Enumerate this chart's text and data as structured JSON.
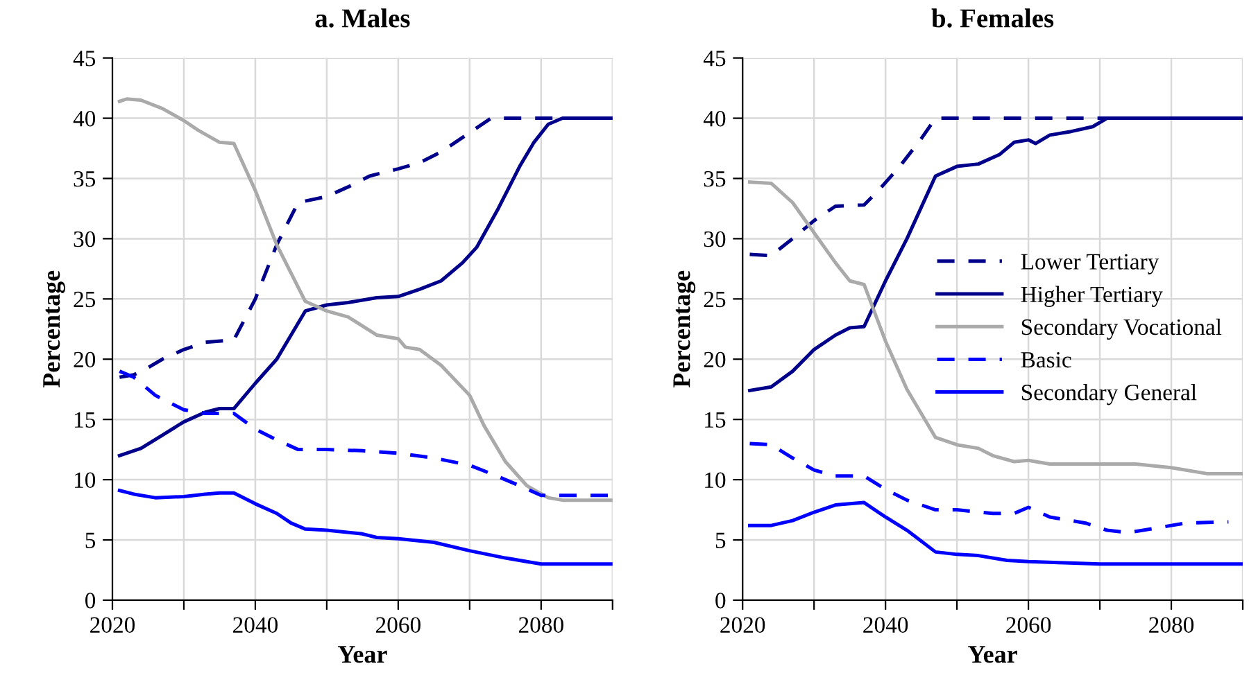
{
  "chart_data": [
    {
      "type": "line",
      "title": "a. Males",
      "xlabel": "Year",
      "ylabel": "Percentage",
      "xlim": [
        2020,
        2090
      ],
      "ylim": [
        0,
        45
      ],
      "xticks": [
        2020,
        {
          "value": 2030,
          "label": null
        },
        2040,
        {
          "value": 2050,
          "label": null
        },
        2060,
        {
          "value": 2070,
          "label": null
        },
        2080,
        {
          "value": 2090,
          "label": null
        }
      ],
      "yticks": [
        0,
        5,
        10,
        15,
        20,
        25,
        30,
        35,
        40,
        45
      ],
      "grid": true,
      "series": [
        {
          "color": "#00008b",
          "line_style": "dashed",
          "x": [
            2021,
            2023,
            2025,
            2027,
            2030,
            2033,
            2037,
            2040,
            2043,
            2046,
            2050,
            2053,
            2056,
            2060,
            2063,
            2066,
            2070,
            2073,
            2080,
            2090
          ],
          "values": [
            18.5,
            18.7,
            19.3,
            20,
            20.8,
            21.4,
            21.6,
            25,
            29.5,
            33,
            33.5,
            34.3,
            35.2,
            35.8,
            36.3,
            37.2,
            38.8,
            40,
            40,
            40
          ]
        },
        {
          "color": "#00008b",
          "line_style": "solid",
          "x": [
            2021,
            2024,
            2027,
            2030,
            2033,
            2035,
            2037,
            2040,
            2043,
            2047,
            2050,
            2053,
            2057,
            2060,
            2063,
            2066,
            2069,
            2071,
            2074,
            2077,
            2079,
            2081,
            2083,
            2090
          ],
          "values": [
            12,
            12.6,
            13.7,
            14.8,
            15.6,
            15.9,
            15.9,
            18,
            20,
            24,
            24.5,
            24.7,
            25.1,
            25.2,
            25.8,
            26.5,
            28,
            29.3,
            32.5,
            36,
            38,
            39.5,
            40,
            40
          ]
        },
        {
          "color": "#aaaaaa",
          "line_style": "solid",
          "x": [
            2021,
            2022,
            2024,
            2027,
            2030,
            2032,
            2035,
            2037,
            2040,
            2043,
            2047,
            2050,
            2053,
            2057,
            2060,
            2061,
            2063,
            2066,
            2070,
            2072,
            2075,
            2078,
            2081,
            2083,
            2090
          ],
          "values": [
            41.4,
            41.6,
            41.5,
            40.8,
            39.8,
            39,
            38,
            37.9,
            34,
            29.5,
            24.8,
            24,
            23.5,
            22,
            21.7,
            21,
            20.8,
            19.5,
            17,
            14.5,
            11.5,
            9.5,
            8.5,
            8.3,
            8.3
          ]
        },
        {
          "color": "#0000ff",
          "line_style": "dashed",
          "x": [
            2021,
            2023,
            2026,
            2030,
            2033,
            2037,
            2040,
            2043,
            2046,
            2050,
            2055,
            2060,
            2065,
            2070,
            2073,
            2077,
            2080,
            2090
          ],
          "values": [
            19,
            18.5,
            17,
            15.8,
            15.5,
            15.5,
            14.2,
            13.3,
            12.5,
            12.5,
            12.4,
            12.2,
            11.8,
            11.2,
            10.5,
            9.5,
            8.7,
            8.7
          ]
        },
        {
          "color": "#0000ff",
          "line_style": "solid",
          "x": [
            2021,
            2023,
            2026,
            2030,
            2033,
            2035,
            2037,
            2040,
            2043,
            2045,
            2047,
            2050,
            2055,
            2057,
            2060,
            2065,
            2070,
            2075,
            2080,
            2090
          ],
          "values": [
            9.1,
            8.8,
            8.5,
            8.6,
            8.8,
            8.9,
            8.9,
            8,
            7.2,
            6.4,
            5.9,
            5.8,
            5.5,
            5.2,
            5.1,
            4.8,
            4.1,
            3.5,
            3,
            3
          ]
        }
      ]
    },
    {
      "type": "line",
      "title": "b. Females",
      "xlabel": "Year",
      "ylabel": "Percentage",
      "xlim": [
        2020,
        2090
      ],
      "ylim": [
        0,
        45
      ],
      "xticks": [
        2020,
        {
          "value": 2030,
          "label": null
        },
        2040,
        {
          "value": 2050,
          "label": null
        },
        2060,
        {
          "value": 2070,
          "label": null
        },
        2080,
        {
          "value": 2090,
          "label": null
        }
      ],
      "yticks": [
        0,
        5,
        10,
        15,
        20,
        25,
        30,
        35,
        40,
        45
      ],
      "grid": true,
      "legend": "right",
      "series": [
        {
          "name": "Lower Tertiary",
          "color": "#00008b",
          "line_style": "dashed",
          "x": [
            2021,
            2024,
            2027,
            2030,
            2033,
            2037,
            2039,
            2042,
            2045,
            2047,
            2090
          ],
          "values": [
            28.7,
            28.6,
            30,
            31.5,
            32.7,
            32.8,
            34,
            36,
            38.3,
            40,
            40
          ]
        },
        {
          "name": "Higher Tertiary",
          "color": "#00008b",
          "line_style": "solid",
          "x": [
            2021,
            2024,
            2027,
            2030,
            2033,
            2035,
            2037,
            2040,
            2043,
            2047,
            2050,
            2053,
            2056,
            2058,
            2060,
            2061,
            2063,
            2066,
            2069,
            2071,
            2090
          ],
          "values": [
            17.4,
            17.7,
            19,
            20.8,
            22,
            22.6,
            22.7,
            26.5,
            30,
            35.2,
            36,
            36.2,
            37,
            38,
            38.2,
            37.9,
            38.6,
            38.9,
            39.3,
            40,
            40
          ]
        },
        {
          "name": "Secondary Vocational",
          "color": "#aaaaaa",
          "line_style": "solid",
          "x": [
            2021,
            2024,
            2027,
            2030,
            2033,
            2035,
            2037,
            2040,
            2043,
            2047,
            2050,
            2053,
            2055,
            2058,
            2060,
            2063,
            2070,
            2075,
            2080,
            2085,
            2090
          ],
          "values": [
            34.7,
            34.6,
            33,
            30.5,
            28,
            26.5,
            26.2,
            21.5,
            17.5,
            13.5,
            12.9,
            12.6,
            12,
            11.5,
            11.6,
            11.3,
            11.3,
            11.3,
            11,
            10.5,
            10.5
          ]
        },
        {
          "name": "Basic",
          "color": "#0000ff",
          "line_style": "dashed",
          "x": [
            2021,
            2024,
            2027,
            2030,
            2033,
            2037,
            2040,
            2043,
            2047,
            2050,
            2055,
            2058,
            2060,
            2063,
            2068,
            2071,
            2074,
            2078,
            2082,
            2088
          ],
          "values": [
            13,
            12.9,
            11.8,
            10.8,
            10.3,
            10.3,
            9.2,
            8.3,
            7.5,
            7.5,
            7.2,
            7.2,
            7.7,
            6.9,
            6.4,
            5.8,
            5.6,
            6,
            6.4,
            6.5
          ]
        },
        {
          "name": "Secondary General",
          "color": "#0000ff",
          "line_style": "solid",
          "x": [
            2021,
            2024,
            2027,
            2030,
            2033,
            2037,
            2040,
            2043,
            2047,
            2050,
            2053,
            2057,
            2060,
            2065,
            2070,
            2090
          ],
          "values": [
            6.2,
            6.2,
            6.6,
            7.3,
            7.9,
            8.1,
            6.9,
            5.8,
            4,
            3.8,
            3.7,
            3.3,
            3.2,
            3.1,
            3,
            3
          ]
        }
      ]
    }
  ]
}
